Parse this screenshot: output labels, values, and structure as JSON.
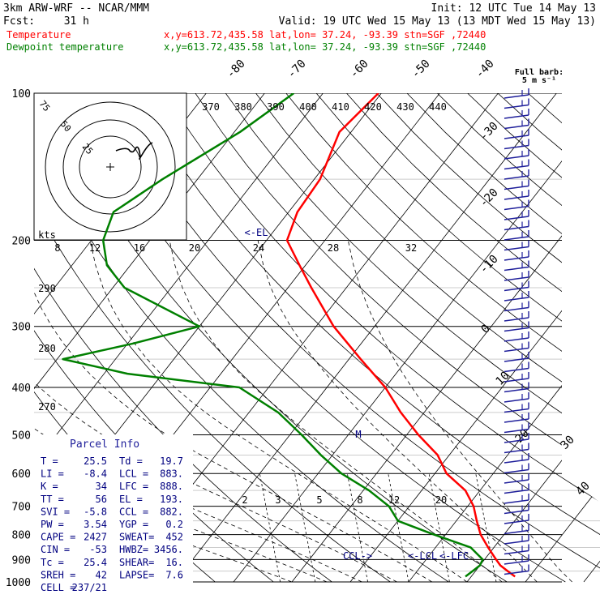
{
  "header": {
    "model": "3km ARW-WRF -- NCAR/MMM",
    "init": "Init: 12 UTC Tue 14 May 13",
    "fcst_label": "Fcst:",
    "fcst_value": "31 h",
    "valid": "Valid: 19 UTC Wed 15 May 13 (13 MDT Wed 15 May 13)",
    "temp_line": "Temperature",
    "dew_line": "Dewpoint temperature",
    "coords": "x,y=613.72,435.58   lat,lon= 37.24, -93.39   stn=SGF ,72440"
  },
  "colors": {
    "temperature": "#ff0000",
    "dewpoint": "#008000",
    "panel_text": "#000080",
    "label_text": "#1e1e9a"
  },
  "chart_data": {
    "type": "line",
    "title": "",
    "ylabel": "",
    "pressure_levels": [
      100,
      200,
      300,
      400,
      500,
      600,
      700,
      800,
      900,
      1000
    ],
    "skew_temp_labels": [
      "-80",
      "-70",
      "-60",
      "-50",
      "-40",
      "-30",
      "-20",
      "-10",
      "0",
      "10",
      "20",
      "30",
      "40"
    ],
    "theta_labels": [
      "370",
      "380",
      "390",
      "400",
      "410",
      "420",
      "430",
      "440"
    ],
    "theta_left_labels": [
      "290",
      "280",
      "270"
    ],
    "mixing_ratio_labels": [
      "2",
      "3",
      "5",
      "8",
      "12",
      "20"
    ],
    "hodograph_ring_labels": [
      "75",
      "50",
      "25"
    ],
    "hodograph_speed_labels": [
      "kts",
      "8",
      "12",
      "16",
      "20",
      "24",
      "28",
      "32"
    ],
    "level_markers": [
      "<-EL",
      "CCL->",
      "<-LCL",
      "<-LFC",
      "M"
    ],
    "wind_barb_legend": [
      "Full barb:",
      "5 m s⁻¹"
    ],
    "series": [
      {
        "name": "Temperature",
        "pressure": [
          100,
          120,
          150,
          175,
          200,
          225,
          250,
          300,
          350,
          400,
          450,
          500,
          550,
          600,
          650,
          700,
          750,
          800,
          850,
          900,
          925,
          950,
          975
        ],
        "temperature": [
          -60.5,
          -62,
          -59,
          -58.5,
          -56.5,
          -51,
          -46,
          -37,
          -28,
          -20,
          -14,
          -8,
          -2,
          2,
          7.5,
          11,
          13.5,
          16,
          19,
          22,
          23.5,
          25.5,
          27.5
        ]
      },
      {
        "name": "Dewpoint temperature",
        "pressure": [
          100,
          120,
          150,
          175,
          200,
          225,
          250,
          300,
          325,
          350,
          375,
          400,
          450,
          500,
          550,
          600,
          650,
          700,
          750,
          800,
          850,
          900,
          925,
          950,
          975
        ],
        "dewpoint": [
          -75,
          -79,
          -86,
          -90,
          -88,
          -84,
          -78,
          -60,
          -69,
          -79,
          -66,
          -45,
          -35,
          -28,
          -22,
          -16,
          -9,
          -3.5,
          0,
          8,
          16,
          19.7,
          20,
          19.5,
          19
        ]
      }
    ]
  },
  "parcel": {
    "title": "Parcel Info",
    "rows": [
      [
        "T  =",
        "25.5",
        "Td =",
        "19.7"
      ],
      [
        "LI =",
        "-8.4",
        "LCL =",
        "883."
      ],
      [
        "K  =",
        "34",
        "LFC =",
        "888."
      ],
      [
        "TT =",
        "56",
        "EL  =",
        "193."
      ],
      [
        "SVI =",
        "-5.8",
        "CCL =",
        "882."
      ],
      [
        "PW =",
        "3.54",
        "YGP =",
        "0.2"
      ],
      [
        "CAPE =",
        "2427",
        "SWEAT=",
        "452"
      ],
      [
        "CIN =",
        "-53",
        "HWBZ=",
        "3456."
      ],
      [
        "Tc =",
        "25.4",
        "SHEAR=",
        "16."
      ],
      [
        "SREH =",
        "42",
        "LAPSE=",
        "7.6"
      ],
      [
        "CELL =",
        "237/21",
        "",
        ""
      ]
    ]
  }
}
